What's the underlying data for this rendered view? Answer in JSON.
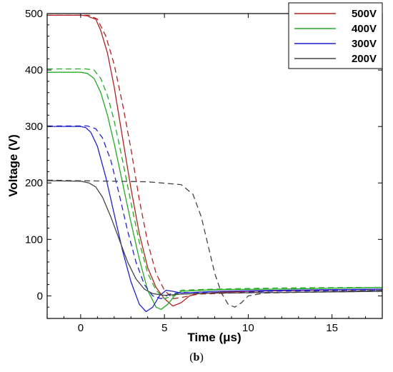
{
  "caption": {
    "open": "(",
    "letter": "b",
    "close": ")"
  },
  "chart_data": {
    "type": "line",
    "xlabel": "Time (μs)",
    "ylabel": "Voltage (V)",
    "xlim": [
      -2,
      18
    ],
    "ylim": [
      -40,
      500
    ],
    "xticks": [
      0,
      5,
      10,
      15
    ],
    "yticks": [
      0,
      100,
      200,
      300,
      400,
      500
    ],
    "grid": false,
    "legend_position": "top-right",
    "series": [
      {
        "name": "500V",
        "color": "#b22222",
        "style": "solid",
        "points": [
          [
            -2,
            497
          ],
          [
            0,
            497
          ],
          [
            0.4,
            496
          ],
          [
            0.6,
            493
          ],
          [
            0.9,
            490
          ],
          [
            1.2,
            470
          ],
          [
            1.6,
            430
          ],
          [
            2.0,
            370
          ],
          [
            2.5,
            280
          ],
          [
            3.0,
            190
          ],
          [
            3.5,
            110
          ],
          [
            4.0,
            50
          ],
          [
            4.5,
            15
          ],
          [
            5.0,
            -5
          ],
          [
            5.5,
            -18
          ],
          [
            6.0,
            -12
          ],
          [
            6.5,
            0
          ],
          [
            7.0,
            4
          ],
          [
            8,
            6
          ],
          [
            10,
            8
          ],
          [
            14,
            10
          ],
          [
            18,
            12
          ]
        ]
      },
      {
        "name": "500V",
        "color": "#b22222",
        "style": "dashed",
        "points": [
          [
            -2,
            497
          ],
          [
            0.5,
            497
          ],
          [
            1.0,
            490
          ],
          [
            1.5,
            460
          ],
          [
            2.0,
            410
          ],
          [
            2.5,
            340
          ],
          [
            3.0,
            260
          ],
          [
            3.5,
            170
          ],
          [
            4.0,
            95
          ],
          [
            4.5,
            40
          ],
          [
            5.0,
            10
          ],
          [
            5.5,
            -5
          ],
          [
            6.0,
            -3
          ],
          [
            7,
            3
          ],
          [
            9,
            5
          ],
          [
            18,
            8
          ]
        ]
      },
      {
        "name": "400V",
        "color": "#22aa22",
        "style": "solid",
        "points": [
          [
            -2,
            396
          ],
          [
            0,
            396
          ],
          [
            0.4,
            394
          ],
          [
            0.8,
            385
          ],
          [
            1.2,
            360
          ],
          [
            1.6,
            320
          ],
          [
            2.0,
            270
          ],
          [
            2.5,
            200
          ],
          [
            3.0,
            130
          ],
          [
            3.5,
            65
          ],
          [
            4.0,
            10
          ],
          [
            4.5,
            -20
          ],
          [
            4.8,
            -24
          ],
          [
            5.2,
            -15
          ],
          [
            5.6,
            0
          ],
          [
            6,
            8
          ],
          [
            8,
            11
          ],
          [
            12,
            12
          ],
          [
            18,
            15
          ]
        ]
      },
      {
        "name": "400V",
        "color": "#22aa22",
        "style": "dashed",
        "points": [
          [
            -2,
            402
          ],
          [
            0.3,
            402
          ],
          [
            0.8,
            400
          ],
          [
            1.2,
            385
          ],
          [
            1.6,
            355
          ],
          [
            2.0,
            310
          ],
          [
            2.5,
            240
          ],
          [
            3.0,
            165
          ],
          [
            3.5,
            95
          ],
          [
            4.0,
            40
          ],
          [
            4.5,
            10
          ],
          [
            5.0,
            -5
          ],
          [
            5.5,
            0
          ],
          [
            6,
            10
          ],
          [
            8,
            12
          ],
          [
            12,
            14
          ],
          [
            18,
            15
          ]
        ]
      },
      {
        "name": "300V",
        "color": "#2222cc",
        "style": "solid",
        "points": [
          [
            -2,
            300
          ],
          [
            0,
            300
          ],
          [
            0.3,
            298
          ],
          [
            0.6,
            290
          ],
          [
            1.0,
            265
          ],
          [
            1.5,
            210
          ],
          [
            2.0,
            145
          ],
          [
            2.5,
            80
          ],
          [
            3.0,
            25
          ],
          [
            3.5,
            -15
          ],
          [
            3.9,
            -28
          ],
          [
            4.3,
            -20
          ],
          [
            4.7,
            0
          ],
          [
            5.1,
            10
          ],
          [
            5.5,
            8
          ],
          [
            6,
            5
          ],
          [
            8,
            8
          ],
          [
            12,
            10
          ],
          [
            18,
            12
          ]
        ]
      },
      {
        "name": "300V",
        "color": "#2222cc",
        "style": "dashed",
        "points": [
          [
            -2,
            301
          ],
          [
            0.4,
            301
          ],
          [
            0.9,
            296
          ],
          [
            1.3,
            280
          ],
          [
            1.8,
            240
          ],
          [
            2.3,
            180
          ],
          [
            2.8,
            115
          ],
          [
            3.3,
            60
          ],
          [
            3.8,
            20
          ],
          [
            4.3,
            0
          ],
          [
            4.8,
            -5
          ],
          [
            5.3,
            3
          ],
          [
            6,
            6
          ],
          [
            9,
            5
          ],
          [
            11,
            8
          ],
          [
            18,
            10
          ]
        ]
      },
      {
        "name": "200V",
        "color": "#444444",
        "style": "solid",
        "points": [
          [
            -2,
            204
          ],
          [
            0,
            203
          ],
          [
            0.5,
            200
          ],
          [
            0.9,
            193
          ],
          [
            1.3,
            175
          ],
          [
            1.8,
            140
          ],
          [
            2.3,
            100
          ],
          [
            2.8,
            60
          ],
          [
            3.3,
            30
          ],
          [
            3.8,
            12
          ],
          [
            4.3,
            4
          ],
          [
            5.0,
            1
          ],
          [
            6,
            3
          ],
          [
            8,
            5
          ],
          [
            12,
            6
          ],
          [
            18,
            8
          ]
        ]
      },
      {
        "name": "200V",
        "color": "#444444",
        "style": "dashed",
        "points": [
          [
            -2,
            205
          ],
          [
            0,
            204
          ],
          [
            2,
            203
          ],
          [
            4,
            202
          ],
          [
            6,
            197
          ],
          [
            6.7,
            180
          ],
          [
            7.2,
            140
          ],
          [
            7.6,
            90
          ],
          [
            8.0,
            40
          ],
          [
            8.4,
            5
          ],
          [
            8.8,
            -15
          ],
          [
            9.2,
            -20
          ],
          [
            9.6,
            -12
          ],
          [
            10.0,
            0
          ],
          [
            11,
            5
          ],
          [
            14,
            7
          ],
          [
            18,
            10
          ]
        ]
      }
    ]
  }
}
